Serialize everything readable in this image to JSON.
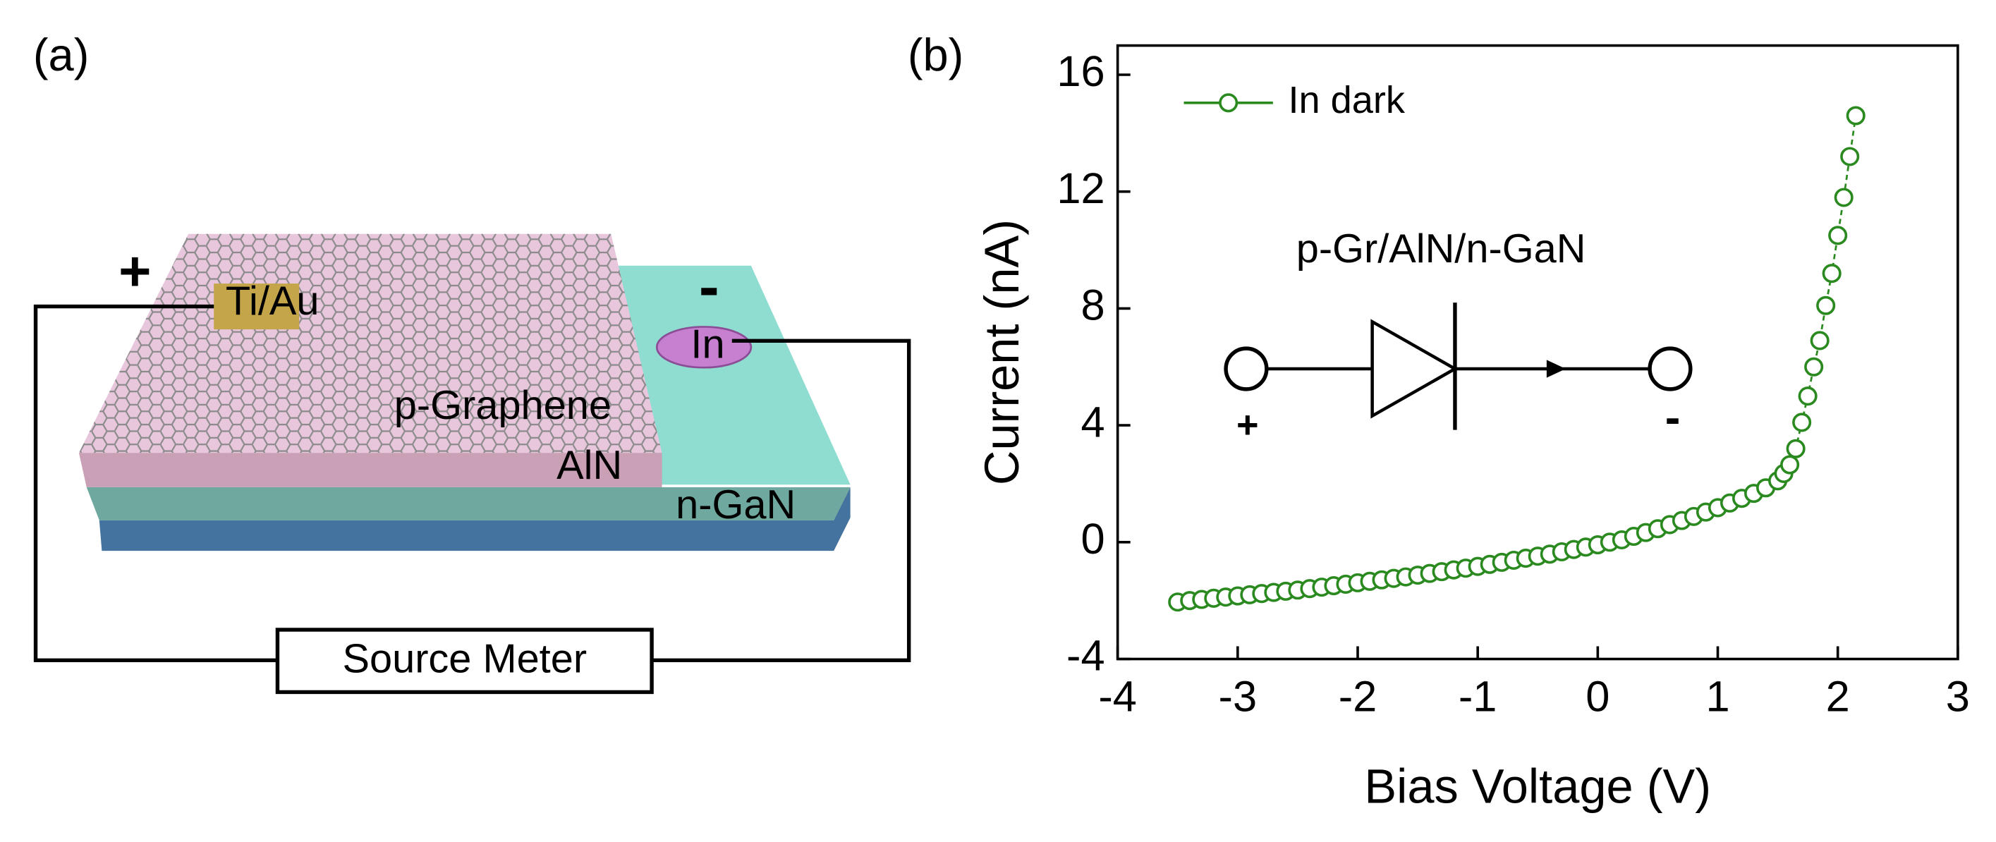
{
  "panel_a": {
    "label": "(a)",
    "labels": {
      "plus": "+",
      "minus": "-",
      "contact_top": "Ti/Au",
      "contact_side": "In",
      "layer_top": "p-Graphene",
      "layer_middle": "AlN",
      "layer_bottom": "n-GaN",
      "instrument": "Source Meter"
    }
  },
  "chart_data": {
    "type": "line",
    "panel_label": "(b)",
    "x_label": "Bias Voltage (V)",
    "y_label": "Current (nA)",
    "x": [
      -3.5,
      -3.4,
      -3.3,
      -3.2,
      -3.1,
      -3.0,
      -2.9,
      -2.8,
      -2.7,
      -2.6,
      -2.5,
      -2.4,
      -2.3,
      -2.2,
      -2.1,
      -2.0,
      -1.9,
      -1.8,
      -1.7,
      -1.6,
      -1.5,
      -1.4,
      -1.3,
      -1.2,
      -1.1,
      -1.0,
      -0.9,
      -0.8,
      -0.7,
      -0.6,
      -0.5,
      -0.4,
      -0.3,
      -0.2,
      -0.1,
      0,
      0.1,
      0.2,
      0.3,
      0.4,
      0.5,
      0.6,
      0.7,
      0.8,
      0.9,
      1.0,
      1.1,
      1.2,
      1.3,
      1.4,
      1.5,
      1.55,
      1.6,
      1.65,
      1.7,
      1.75,
      1.8,
      1.85,
      1.9,
      1.95,
      2.0,
      2.05,
      2.1,
      2.15
    ],
    "series": [
      {
        "name": "In dark",
        "color": "#2a8a1f",
        "values": [
          -2.05,
          -2.0,
          -1.96,
          -1.92,
          -1.88,
          -1.84,
          -1.8,
          -1.76,
          -1.72,
          -1.68,
          -1.64,
          -1.59,
          -1.54,
          -1.49,
          -1.44,
          -1.39,
          -1.34,
          -1.29,
          -1.24,
          -1.19,
          -1.13,
          -1.07,
          -1.01,
          -0.95,
          -0.89,
          -0.83,
          -0.76,
          -0.69,
          -0.62,
          -0.55,
          -0.48,
          -0.41,
          -0.33,
          -0.25,
          -0.17,
          -0.09,
          0.0,
          0.08,
          0.2,
          0.33,
          0.46,
          0.6,
          0.74,
          0.88,
          1.03,
          1.18,
          1.34,
          1.5,
          1.67,
          1.86,
          2.1,
          2.35,
          2.65,
          3.2,
          4.1,
          5.0,
          6.0,
          6.9,
          8.1,
          9.2,
          10.5,
          11.8,
          13.2,
          14.6
        ]
      }
    ],
    "xlim": [
      -4,
      3
    ],
    "xticks": [
      -4,
      -3,
      -2,
      -1,
      0,
      1,
      2,
      3
    ],
    "ylim": [
      -4,
      17
    ],
    "yticks": [
      -4,
      0,
      4,
      8,
      12,
      16
    ],
    "legend": "upper left",
    "annotations": {
      "device": "p-Gr/AlN/n-GaN",
      "anode": "+",
      "cathode": "-"
    }
  }
}
